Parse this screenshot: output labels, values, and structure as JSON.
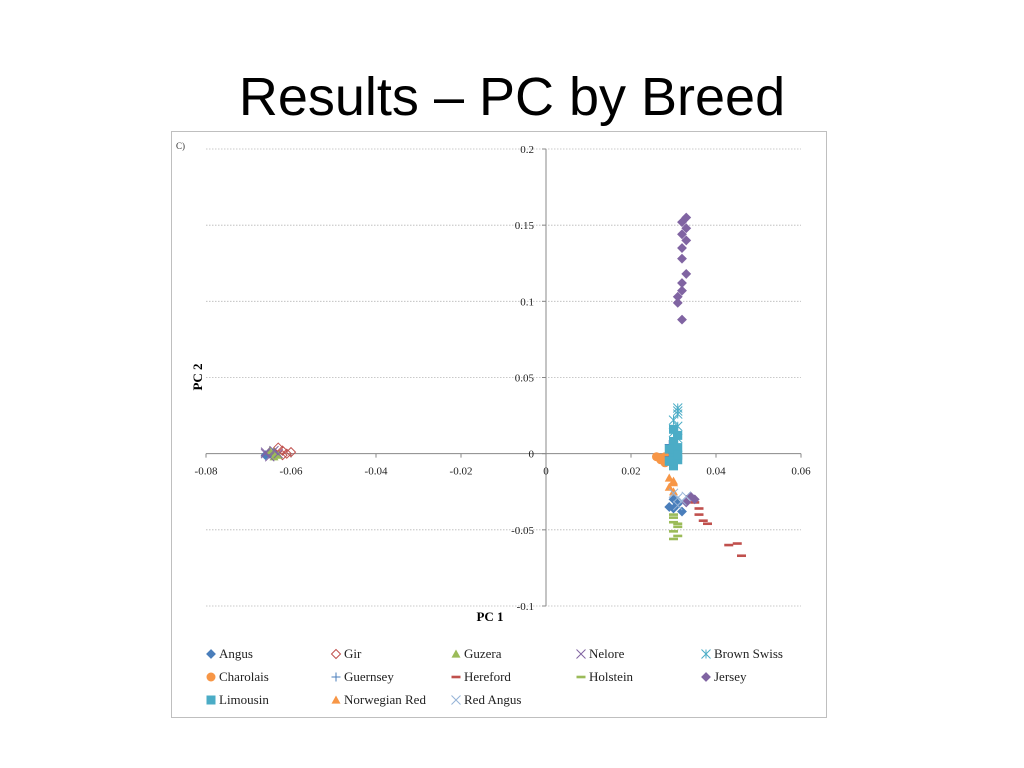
{
  "slide": {
    "title": "Results – PC by Breed"
  },
  "chart_data": {
    "type": "scatter",
    "panel_label": "C)",
    "xlabel": "PC 1",
    "ylabel": "PC 2",
    "xlim": [
      -0.08,
      0.06
    ],
    "ylim": [
      -0.1,
      0.2
    ],
    "xticks": [
      -0.08,
      -0.06,
      -0.04,
      -0.02,
      0,
      0.02,
      0.04,
      0.06
    ],
    "yticks": [
      -0.1,
      -0.05,
      0,
      0.05,
      0.1,
      0.15,
      0.2
    ],
    "xtick_labels": [
      "-0.08",
      "-0.06",
      "-0.04",
      "-0.02",
      "0",
      "0.02",
      "0.04",
      "0.06"
    ],
    "ytick_labels": [
      "-0.1",
      "-0.05",
      "0",
      "0.05",
      "0.1",
      "0.15",
      "0.2"
    ],
    "grid": "horizontal",
    "legend_position": "bottom",
    "series": [
      {
        "name": "Angus",
        "marker": "diamond",
        "color": "#4a7ebb",
        "points": [
          [
            -0.065,
            0.0
          ],
          [
            -0.064,
            0.001
          ],
          [
            -0.066,
            -0.001
          ],
          [
            0.03,
            -0.03
          ],
          [
            0.031,
            -0.033
          ],
          [
            0.03,
            -0.036
          ],
          [
            0.032,
            -0.038
          ],
          [
            0.029,
            -0.035
          ]
        ]
      },
      {
        "name": "Gir",
        "marker": "diamond-open",
        "color": "#c0504d",
        "points": [
          [
            -0.062,
            0.002
          ],
          [
            -0.061,
            0.0
          ],
          [
            -0.063,
            0.004
          ],
          [
            -0.06,
            0.001
          ],
          [
            -0.062,
            -0.001
          ]
        ]
      },
      {
        "name": "Guzera",
        "marker": "triangle",
        "color": "#9bbb59",
        "points": [
          [
            -0.064,
            0.001
          ],
          [
            -0.063,
            -0.001
          ],
          [
            -0.065,
            0.002
          ],
          [
            -0.064,
            -0.002
          ]
        ]
      },
      {
        "name": "Nelore",
        "marker": "x",
        "color": "#8064a2",
        "points": [
          [
            -0.066,
            0.0
          ],
          [
            -0.065,
            -0.002
          ],
          [
            -0.064,
            0.002
          ],
          [
            -0.063,
            0.0
          ],
          [
            -0.066,
            0.001
          ]
        ]
      },
      {
        "name": "Brown Swiss",
        "marker": "star",
        "color": "#4aacc6",
        "points": [
          [
            0.031,
            0.03
          ],
          [
            0.031,
            0.026
          ],
          [
            0.03,
            0.022
          ],
          [
            0.031,
            0.018
          ],
          [
            0.03,
            0.014
          ],
          [
            0.031,
            0.01
          ],
          [
            0.031,
            0.028
          ]
        ]
      },
      {
        "name": "Charolais",
        "marker": "circle",
        "color": "#f79646",
        "points": [
          [
            0.026,
            -0.002
          ],
          [
            0.027,
            -0.004
          ],
          [
            0.028,
            -0.006
          ],
          [
            0.027,
            -0.003
          ],
          [
            0.029,
            -0.005
          ],
          [
            0.028,
            -0.002
          ]
        ]
      },
      {
        "name": "Guernsey",
        "marker": "plus",
        "color": "#4a7ebb",
        "points": [
          [
            0.029,
            0.006
          ],
          [
            0.03,
            0.002
          ],
          [
            0.029,
            -0.002
          ],
          [
            0.03,
            0.008
          ]
        ]
      },
      {
        "name": "Hereford",
        "marker": "dash",
        "color": "#c0504d",
        "points": [
          [
            0.034,
            -0.028
          ],
          [
            0.035,
            -0.032
          ],
          [
            0.036,
            -0.036
          ],
          [
            0.036,
            -0.04
          ],
          [
            0.037,
            -0.044
          ],
          [
            0.038,
            -0.046
          ],
          [
            0.043,
            -0.06
          ],
          [
            0.045,
            -0.059
          ],
          [
            0.046,
            -0.067
          ]
        ]
      },
      {
        "name": "Holstein",
        "marker": "dash",
        "color": "#9bbb59",
        "points": [
          [
            0.03,
            -0.042
          ],
          [
            0.03,
            -0.045
          ],
          [
            0.031,
            -0.048
          ],
          [
            0.03,
            -0.051
          ],
          [
            0.031,
            -0.054
          ],
          [
            0.03,
            -0.056
          ],
          [
            0.031,
            -0.046
          ],
          [
            0.03,
            -0.04
          ]
        ]
      },
      {
        "name": "Jersey",
        "marker": "diamond",
        "color": "#8064a2",
        "points": [
          [
            0.033,
            0.155
          ],
          [
            0.032,
            0.152
          ],
          [
            0.033,
            0.148
          ],
          [
            0.032,
            0.144
          ],
          [
            0.033,
            0.14
          ],
          [
            0.032,
            0.135
          ],
          [
            0.032,
            0.128
          ],
          [
            0.033,
            0.118
          ],
          [
            0.032,
            0.112
          ],
          [
            0.032,
            0.107
          ],
          [
            0.031,
            0.103
          ],
          [
            0.031,
            0.099
          ],
          [
            0.032,
            0.088
          ],
          [
            0.034,
            -0.028
          ],
          [
            0.035,
            -0.03
          ],
          [
            0.033,
            -0.032
          ]
        ]
      },
      {
        "name": "Limousin",
        "marker": "square",
        "color": "#4bacc6",
        "points": [
          [
            0.03,
            0.008
          ],
          [
            0.031,
            0.004
          ],
          [
            0.03,
            0.0
          ],
          [
            0.031,
            -0.004
          ],
          [
            0.03,
            -0.008
          ],
          [
            0.031,
            0.012
          ],
          [
            0.03,
            0.016
          ],
          [
            0.031,
            -0.001
          ],
          [
            0.029,
            0.003
          ],
          [
            0.029,
            -0.005
          ]
        ]
      },
      {
        "name": "Norwegian Red",
        "marker": "triangle",
        "color": "#f79646",
        "points": [
          [
            0.029,
            -0.016
          ],
          [
            0.03,
            -0.019
          ],
          [
            0.029,
            -0.022
          ],
          [
            0.03,
            -0.025
          ],
          [
            0.03,
            -0.018
          ]
        ]
      },
      {
        "name": "Red Angus",
        "marker": "x",
        "color": "#95b3d7",
        "points": [
          [
            0.03,
            -0.026
          ],
          [
            0.031,
            -0.029
          ],
          [
            0.032,
            -0.031
          ],
          [
            0.031,
            -0.034
          ],
          [
            0.033,
            -0.028
          ]
        ]
      }
    ]
  }
}
